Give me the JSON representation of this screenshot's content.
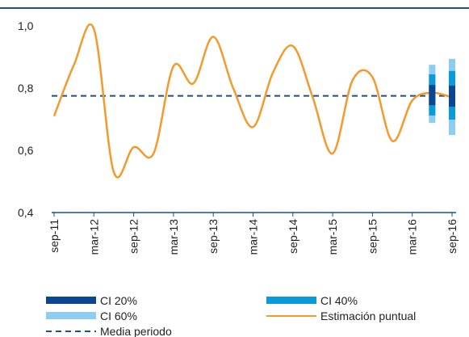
{
  "chart_data": {
    "type": "line",
    "categories": [
      "sep-11",
      null,
      "mar-12",
      null,
      "sep-12",
      null,
      "mar-13",
      null,
      "sep-13",
      null,
      "mar-14",
      null,
      "sep-14",
      null,
      "mar-15",
      null,
      "sep-15",
      null,
      "mar-16",
      null,
      "sep-16"
    ],
    "series": [
      {
        "name": "Estimación puntual",
        "color": "#f39a2c",
        "values": [
          0.71,
          0.875,
          0.99,
          0.53,
          0.61,
          0.59,
          0.87,
          0.815,
          0.965,
          0.8,
          0.675,
          0.85,
          0.935,
          0.77,
          0.59,
          0.825,
          0.835,
          0.63,
          0.76,
          0.785,
          0.77
        ]
      }
    ],
    "reference": {
      "name": "Media periodo",
      "color": "#1f4e8c",
      "value": 0.775
    },
    "intervals": [
      {
        "name": "CI 60%",
        "color": "#8dcdf2",
        "low": [
          null,
          null,
          null,
          null,
          null,
          null,
          null,
          null,
          null,
          null,
          null,
          null,
          null,
          null,
          null,
          null,
          null,
          null,
          null,
          0.688,
          0.649
        ],
        "high": [
          null,
          null,
          null,
          null,
          null,
          null,
          null,
          null,
          null,
          null,
          null,
          null,
          null,
          null,
          null,
          null,
          null,
          null,
          null,
          0.875,
          0.894
        ]
      },
      {
        "name": "CI 40%",
        "color": "#0a9ad9",
        "low": [
          null,
          null,
          null,
          null,
          null,
          null,
          null,
          null,
          null,
          null,
          null,
          null,
          null,
          null,
          null,
          null,
          null,
          null,
          null,
          0.712,
          0.699
        ],
        "high": [
          null,
          null,
          null,
          null,
          null,
          null,
          null,
          null,
          null,
          null,
          null,
          null,
          null,
          null,
          null,
          null,
          null,
          null,
          null,
          0.844,
          0.855
        ]
      },
      {
        "name": "CI 20%",
        "color": "#0b4790",
        "low": [
          null,
          null,
          null,
          null,
          null,
          null,
          null,
          null,
          null,
          null,
          null,
          null,
          null,
          null,
          null,
          null,
          null,
          null,
          null,
          0.745,
          0.74
        ],
        "high": [
          null,
          null,
          null,
          null,
          null,
          null,
          null,
          null,
          null,
          null,
          null,
          null,
          null,
          null,
          null,
          null,
          null,
          null,
          null,
          0.81,
          0.808
        ]
      }
    ],
    "ylim": [
      0.4,
      1.0
    ],
    "yticks": [
      {
        "value": 0.4,
        "label": "0,4"
      },
      {
        "value": 0.6,
        "label": "0,6"
      },
      {
        "value": 0.8,
        "label": "0,8"
      },
      {
        "value": 1.0,
        "label": "1,0"
      }
    ]
  }
}
